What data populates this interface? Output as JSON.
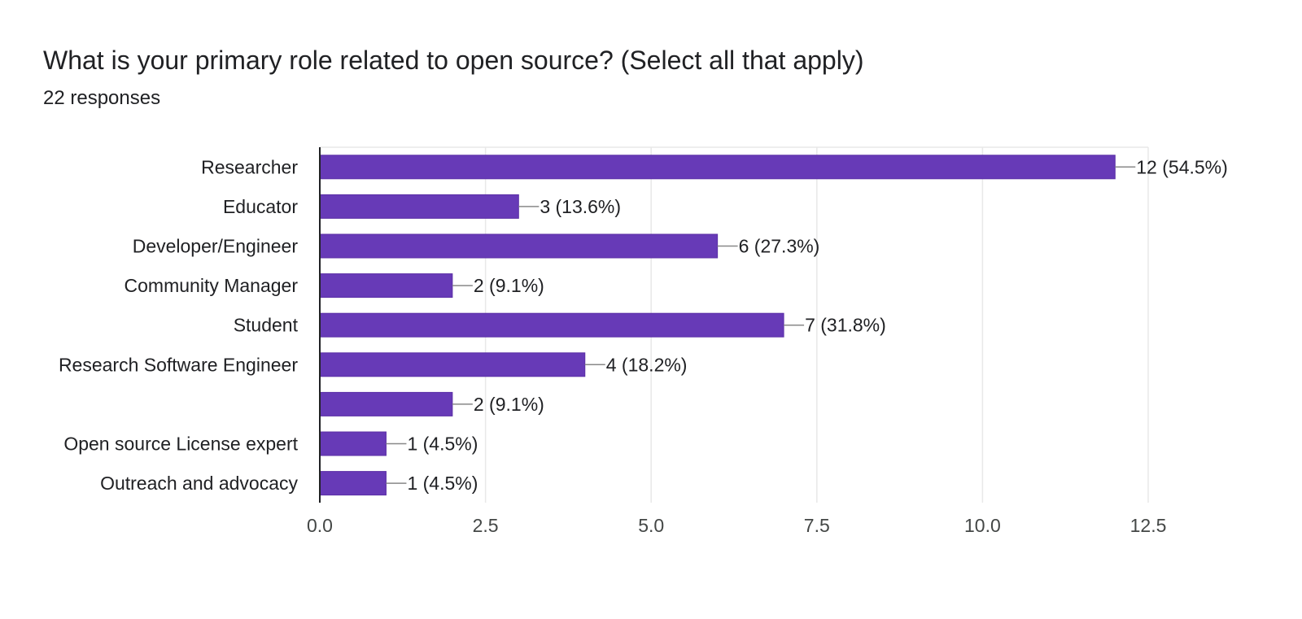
{
  "question": {
    "title": "What is your primary role related to open source? (Select all that apply)",
    "responses": "22 responses"
  },
  "colors": {
    "bar": "#673ab7",
    "bar_border": "#5b2fa6",
    "grid": "#e8e8e8",
    "axis": "#202124",
    "leader": "#888888"
  },
  "chart_data": {
    "type": "bar",
    "orientation": "horizontal",
    "title": "What is your primary role related to open source? (Select all that apply)",
    "subtitle": "22 responses",
    "categories": [
      "Researcher",
      "Educator",
      "Developer/Engineer",
      "Community Manager",
      "Student",
      "Research Software Engineer",
      "",
      "Open source License expert",
      "Outreach and advocacy"
    ],
    "values": [
      12,
      3,
      6,
      2,
      7,
      4,
      2,
      1,
      1
    ],
    "labels": [
      "12 (54.5%)",
      "3 (13.6%)",
      "6 (27.3%)",
      "2 (9.1%)",
      "7 (31.8%)",
      "4 (18.2%)",
      "2 (9.1%)",
      "1 (4.5%)",
      "1 (4.5%)"
    ],
    "xlim": [
      0,
      12.5
    ],
    "xticks": [
      "0.0",
      "2.5",
      "5.0",
      "7.5",
      "10.0",
      "12.5"
    ],
    "xtick_values": [
      0,
      2.5,
      5,
      7.5,
      10,
      12.5
    ],
    "grid": true,
    "xlabel": "",
    "ylabel": ""
  }
}
